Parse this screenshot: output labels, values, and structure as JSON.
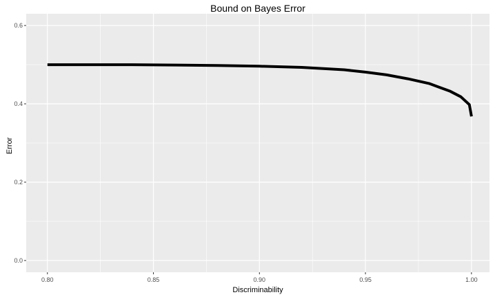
{
  "chart_data": {
    "type": "line",
    "title": "Bound on Bayes Error",
    "xlabel": "Discriminability",
    "ylabel": "Error",
    "xlim": [
      0.79,
      1.0085
    ],
    "ylim": [
      -0.03,
      0.63
    ],
    "x_ticks": [
      0.8,
      0.85,
      0.9,
      0.95,
      1.0
    ],
    "x_tick_labels": [
      "0.80",
      "0.85",
      "0.90",
      "0.95",
      "1.00"
    ],
    "y_ticks": [
      0.0,
      0.2,
      0.4,
      0.6
    ],
    "y_tick_labels": [
      "0.0",
      "0.2",
      "0.4",
      "0.6"
    ],
    "grid": true,
    "background": "#EBEBEB",
    "line_color": "#000000",
    "series": [
      {
        "x": [
          0.8,
          0.82,
          0.84,
          0.86,
          0.88,
          0.9,
          0.92,
          0.94,
          0.95,
          0.96,
          0.97,
          0.98,
          0.99,
          0.995,
          0.999,
          1.0
        ],
        "values": [
          0.5,
          0.5,
          0.5,
          0.499,
          0.498,
          0.496,
          0.493,
          0.487,
          0.481,
          0.474,
          0.464,
          0.452,
          0.432,
          0.418,
          0.398,
          0.368
        ]
      }
    ]
  }
}
